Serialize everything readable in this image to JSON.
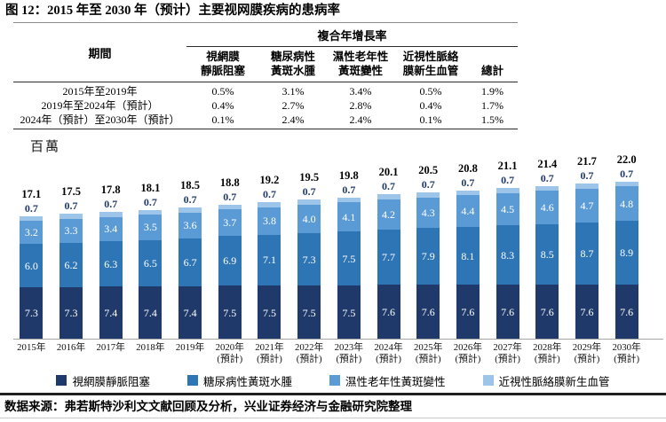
{
  "title": "图 12：2015 年至 2030 年（预计）主要视网膜疾病的患病率",
  "table": {
    "period_header": "期間",
    "cagr_header": "複合年增長率",
    "columns_two_line": [
      [
        "視網膜",
        "靜脈阻塞"
      ],
      [
        "糖尿病性",
        "黃斑水腫"
      ],
      [
        "濕性老年性",
        "黃斑變性"
      ],
      [
        "近視性脈絡",
        "膜新生血管"
      ],
      [
        "總計"
      ]
    ],
    "rows": [
      {
        "period": "2015年至2019年",
        "values": [
          "0.5%",
          "3.1%",
          "3.4%",
          "0.5%",
          "1.9%"
        ]
      },
      {
        "period": "2019年至2024年（預計）",
        "values": [
          "0.4%",
          "2.7%",
          "2.8%",
          "0.4%",
          "1.7%"
        ]
      },
      {
        "period": "2024年（預計）至2030年（預計）",
        "values": [
          "0.1%",
          "2.4%",
          "2.4%",
          "0.1%",
          "1.5%"
        ]
      }
    ]
  },
  "chart_data": {
    "type": "bar",
    "stacked": true,
    "unit_label": "百萬",
    "categories": [
      "2015年",
      "2016年",
      "2017年",
      "2018年",
      "2019年",
      "2020年",
      "2021年",
      "2022年",
      "2023年",
      "2024年",
      "2025年",
      "2026年",
      "2027年",
      "2028年",
      "2029年",
      "2030年"
    ],
    "predicted_note": "(預計)",
    "predicted_from_index": 5,
    "series": [
      {
        "name": "視網膜靜脈阻塞",
        "color": "#1F3A6A",
        "values": [
          7.3,
          7.3,
          7.4,
          7.4,
          7.4,
          7.5,
          7.5,
          7.5,
          7.5,
          7.6,
          7.6,
          7.6,
          7.6,
          7.6,
          7.6,
          7.6
        ]
      },
      {
        "name": "糖尿病性黃斑水腫",
        "color": "#2E75B6",
        "values": [
          6.0,
          6.2,
          6.3,
          6.5,
          6.7,
          6.9,
          7.1,
          7.3,
          7.5,
          7.7,
          7.9,
          8.1,
          8.3,
          8.5,
          8.7,
          8.9
        ]
      },
      {
        "name": "濕性老年性黃斑變性",
        "color": "#5B9BD5",
        "values": [
          3.2,
          3.3,
          3.4,
          3.5,
          3.6,
          3.7,
          3.8,
          4.0,
          4.1,
          4.2,
          4.3,
          4.4,
          4.5,
          4.6,
          4.7,
          4.8
        ]
      },
      {
        "name": "近視性脈絡膜新生血管",
        "color": "#9CC5E9",
        "values": [
          0.7,
          0.7,
          0.7,
          0.7,
          0.7,
          0.7,
          0.7,
          0.7,
          0.7,
          0.7,
          0.7,
          0.7,
          0.7,
          0.7,
          0.7,
          0.7
        ]
      }
    ],
    "totals": [
      17.1,
      17.5,
      17.8,
      18.1,
      18.5,
      18.8,
      19.2,
      19.5,
      19.8,
      20.1,
      20.5,
      20.8,
      21.1,
      21.4,
      21.7,
      22.0
    ],
    "ylim": [
      0,
      22
    ],
    "grid": false,
    "legend_position": "bottom"
  },
  "source": "数据来源：弗若斯特沙利文文献回顾及分析，兴业证券经济与金融研究院整理"
}
